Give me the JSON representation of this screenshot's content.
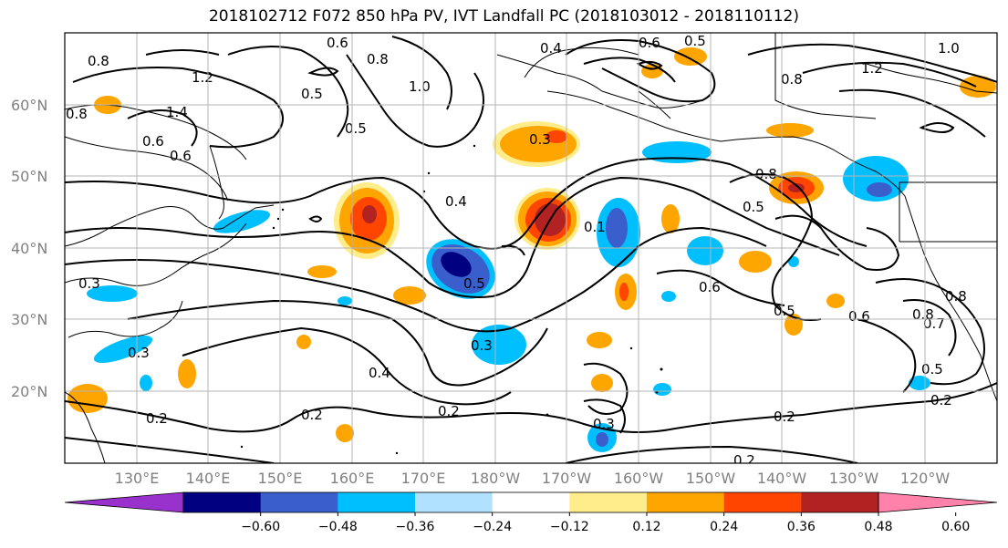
{
  "title": "2018102712 F072 850 hPa PV, IVT Landfall PC (2018103012 - 2018110112)",
  "lat_labels": [
    "60°N",
    "50°N",
    "40°N",
    "30°N",
    "20°N"
  ],
  "lon_labels": [
    "130°E",
    "140°E",
    "150°E",
    "160°E",
    "170°E",
    "180°W",
    "170°W",
    "160°W",
    "150°W",
    "140°W",
    "130°W",
    "120°W"
  ],
  "colorbar": {
    "ticks": [
      "−0.60",
      "−0.48",
      "−0.36",
      "−0.24",
      "−0.12",
      "0.12",
      "0.24",
      "0.36",
      "0.48",
      "0.60"
    ],
    "colors": [
      "#9932CC",
      "#000080",
      "#3A5FCD",
      "#00BFFF",
      "#B0E2FF",
      "#FFFFFF",
      "#FFEC8B",
      "#FFA500",
      "#FF4500",
      "#B22222",
      "#FF82AB"
    ]
  },
  "contour_labels": [
    "0.8",
    "0.8",
    "1.2",
    "1.4",
    "0.6",
    "0.6",
    "0.5",
    "0.6",
    "0.8",
    "1.0",
    "0.4",
    "0.6",
    "0.5",
    "0.8",
    "1.0",
    "1.2",
    "0.8",
    "0.5",
    "0.4",
    "0.5",
    "0.8",
    "0.5",
    "0.6",
    "0.5",
    "0.6",
    "0.8",
    "0.7",
    "0.5",
    "0.4",
    "0.3",
    "0.3",
    "0.2",
    "0.2",
    "0.2",
    "0.2",
    "0.2",
    "0.3",
    "0.3",
    "0.3",
    "0.2",
    "0.1"
  ]
}
